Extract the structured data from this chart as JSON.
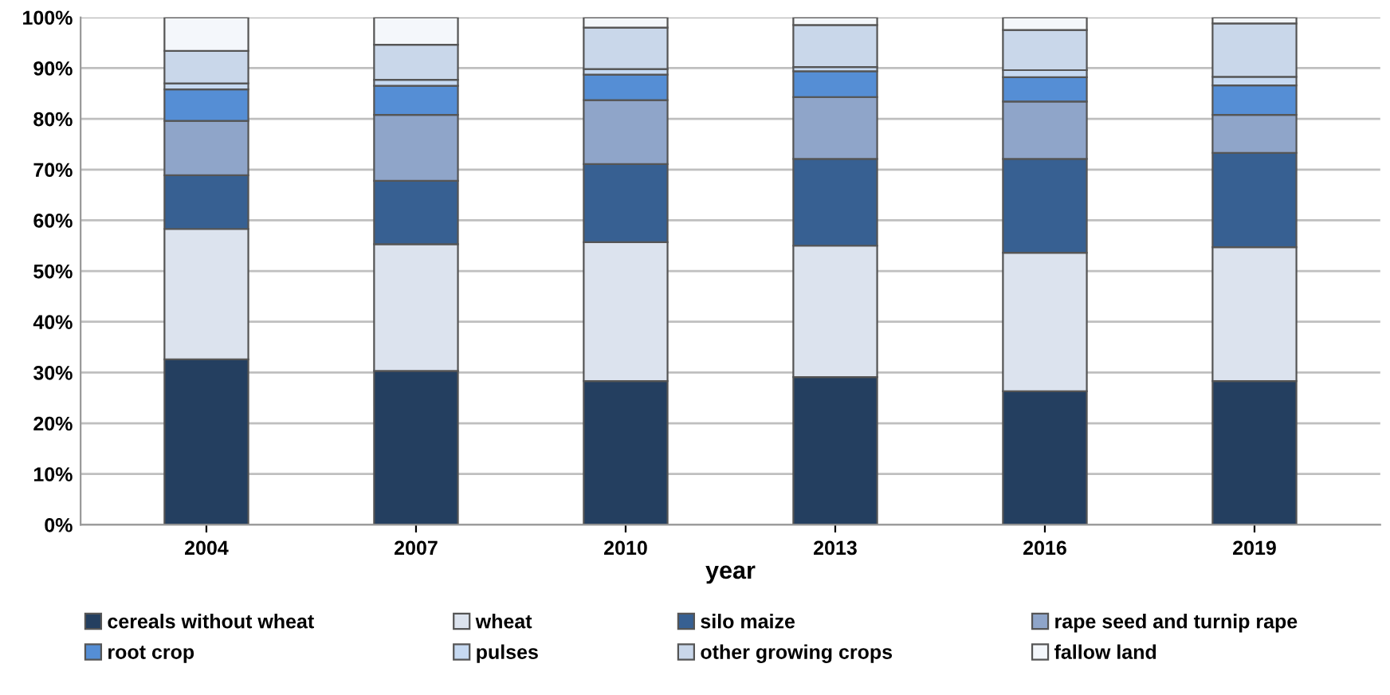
{
  "chart_data": {
    "type": "bar",
    "stacked": true,
    "xlabel": "year",
    "categories": [
      "2004",
      "2007",
      "2010",
      "2013",
      "2016",
      "2019"
    ],
    "series": [
      {
        "name": "cereals without wheat",
        "color": "#243f60",
        "values": [
          32.6,
          30.3,
          28.3,
          29.1,
          26.3,
          28.3
        ]
      },
      {
        "name": "wheat",
        "color": "#dce3ee",
        "values": [
          25.7,
          25.0,
          27.4,
          25.9,
          27.3,
          26.4
        ]
      },
      {
        "name": "silo maize",
        "color": "#376092",
        "values": [
          10.6,
          12.5,
          15.4,
          17.1,
          18.5,
          18.6
        ]
      },
      {
        "name": "rape seed and turnip rape",
        "color": "#8fa5c9",
        "values": [
          10.7,
          13.0,
          12.6,
          12.2,
          11.3,
          7.5
        ]
      },
      {
        "name": "root crop",
        "color": "#558ed5",
        "values": [
          6.2,
          5.7,
          5.0,
          5.1,
          4.8,
          5.8
        ]
      },
      {
        "name": "pulses",
        "color": "#c6d9f1",
        "values": [
          1.2,
          1.2,
          1.1,
          0.8,
          1.4,
          1.7
        ]
      },
      {
        "name": "other growing crops",
        "color": "#c9d7ea",
        "values": [
          6.4,
          6.9,
          8.2,
          8.3,
          7.9,
          10.5
        ]
      },
      {
        "name": "fallow land",
        "color": "#f4f7fb",
        "values": [
          6.6,
          5.4,
          2.0,
          1.5,
          2.5,
          1.2
        ]
      }
    ],
    "ylim": [
      0,
      100
    ],
    "yticks": [
      {
        "value": 0,
        "label": "0%"
      },
      {
        "value": 10,
        "label": "10%"
      },
      {
        "value": 20,
        "label": "20%"
      },
      {
        "value": 30,
        "label": "30%"
      },
      {
        "value": 40,
        "label": "40%"
      },
      {
        "value": 50,
        "label": "50%"
      },
      {
        "value": 60,
        "label": "60%"
      },
      {
        "value": 70,
        "label": "70%"
      },
      {
        "value": 80,
        "label": "80%"
      },
      {
        "value": 90,
        "label": "90%"
      },
      {
        "value": 100,
        "label": "100%"
      }
    ],
    "grid": "y",
    "legend": "bottom"
  }
}
